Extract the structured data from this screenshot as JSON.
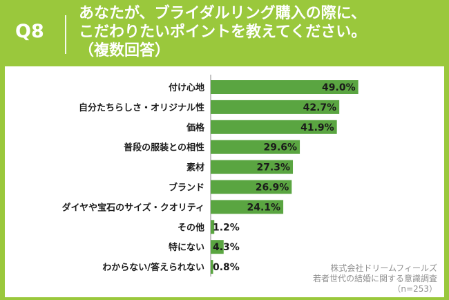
{
  "header": {
    "qnum": "Q8",
    "title": "あなたが、ブライダルリング購入の際に、\nこだわりたいポイントを教えてください。\n（複数回答）"
  },
  "source": {
    "line1": "株式会社ドリームフィールズ",
    "line2": "若者世代の結婚に関する意識調査",
    "line3": "（n=253）"
  },
  "colors": {
    "background": "#9ac83c",
    "bar": "#5aa541",
    "axis": "#888888"
  },
  "chart_data": {
    "type": "bar",
    "orientation": "horizontal",
    "categories": [
      "付け心地",
      "自分たちらしさ・オリジナル性",
      "価格",
      "普段の服装との相性",
      "素材",
      "ブランド",
      "ダイヤや宝石のサイズ・クオリティ",
      "その他",
      "特にない",
      "わからない/答えられない"
    ],
    "values": [
      49.0,
      42.7,
      41.9,
      29.6,
      27.3,
      26.9,
      24.1,
      1.2,
      4.3,
      0.8
    ],
    "value_labels": [
      "49.0%",
      "42.7%",
      "41.9%",
      "29.6%",
      "27.3%",
      "26.9%",
      "24.1%",
      "1.2%",
      "4.3%",
      "0.8%"
    ],
    "xlim": [
      0,
      50
    ],
    "grid": false,
    "legend": "none"
  }
}
